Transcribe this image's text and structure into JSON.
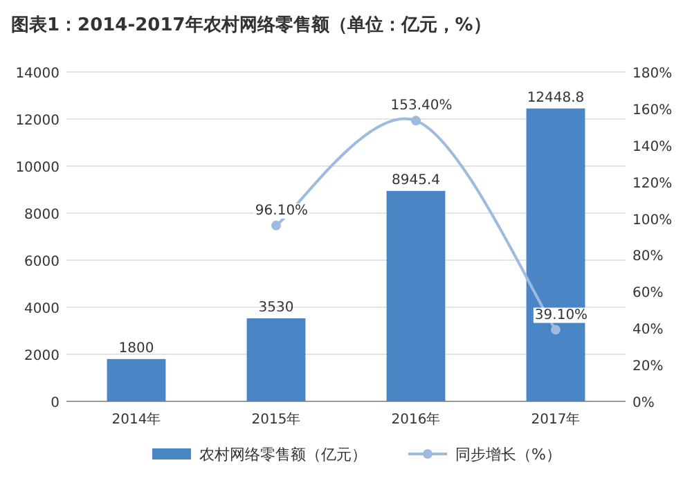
{
  "chart_data": {
    "type": "bar",
    "title": "图表1：2014-2017年农村网络零售额（单位：亿元，%）",
    "categories": [
      "2014年",
      "2015年",
      "2016年",
      "2017年"
    ],
    "series": [
      {
        "name": "农村网络零售额（亿元）",
        "color": "#4a86c5",
        "values": [
          1800,
          3530,
          8945.4,
          12448.8
        ],
        "value_labels": [
          "1800",
          "3530",
          "8945.4",
          "12448.8"
        ]
      },
      {
        "name": "同步增长（%）",
        "type": "line",
        "axis": "y2",
        "color": "#9dbbdf",
        "values": [
          null,
          96.1,
          153.4,
          39.1
        ],
        "value_labels": [
          null,
          "96.10%",
          "153.40%",
          "39.10%"
        ]
      }
    ],
    "ylim": [
      0,
      14000
    ],
    "yticks": [
      0,
      2000,
      4000,
      6000,
      8000,
      10000,
      12000,
      14000
    ],
    "y2lim": [
      0,
      180
    ],
    "y2ticks": [
      {
        "value": 0,
        "label": "0%"
      },
      {
        "value": 20,
        "label": "20%"
      },
      {
        "value": 40,
        "label": "40%"
      },
      {
        "value": 60,
        "label": "60%"
      },
      {
        "value": 80,
        "label": "80%"
      },
      {
        "value": 100,
        "label": "100%"
      },
      {
        "value": 120,
        "label": "120%"
      },
      {
        "value": 140,
        "label": "140%"
      },
      {
        "value": 160,
        "label": "160%"
      },
      {
        "value": 180,
        "label": "180%"
      }
    ],
    "grid": "y",
    "legend": "bottom",
    "marker": "circle"
  }
}
